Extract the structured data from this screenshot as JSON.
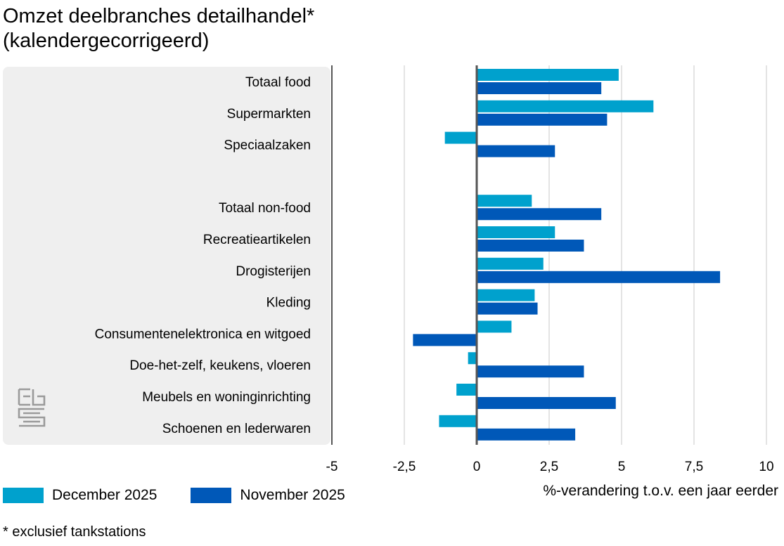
{
  "title_line1": "Omzet deelbranches detailhandel*",
  "title_line2": "(kalendergecorrigeerd)",
  "footnote": "* exclusief tankstations",
  "logo_name": "cbs-logo",
  "chart_data": {
    "type": "bar",
    "orientation": "horizontal",
    "title": "Omzet deelbranches detailhandel* (kalendergecorrigeerd)",
    "xlabel": "%-verandering t.o.v. een jaar eerder",
    "ylabel": "",
    "xlim": [
      -5,
      10
    ],
    "ticks": [
      -5,
      -2.5,
      0,
      2.5,
      5,
      7.5,
      10
    ],
    "tick_labels": [
      "-5",
      "-2,5",
      "0",
      "2,5",
      "5",
      "7,5",
      "10"
    ],
    "grid": true,
    "legend_position": "bottom-left",
    "categories": [
      "Totaal food",
      "Supermarkten",
      "Speciaalzaken",
      "",
      "Totaal non-food",
      "Recreatieartikelen",
      "Drogisterijen",
      "Kleding",
      "Consumentenelektronica en witgoed",
      "Doe-het-zelf, keukens, vloeren",
      "Meubels en woninginrichting",
      "Schoenen en lederwaren"
    ],
    "series": [
      {
        "name": "December 2025",
        "color": "#00a1cd",
        "values": [
          4.9,
          6.1,
          -1.1,
          null,
          1.9,
          2.7,
          2.3,
          2.0,
          1.2,
          -0.3,
          -0.7,
          -1.3
        ]
      },
      {
        "name": "November 2025",
        "color": "#0058b8",
        "values": [
          4.3,
          4.5,
          2.7,
          null,
          4.3,
          3.7,
          8.4,
          2.1,
          -2.2,
          3.7,
          4.8,
          3.4
        ]
      }
    ]
  }
}
